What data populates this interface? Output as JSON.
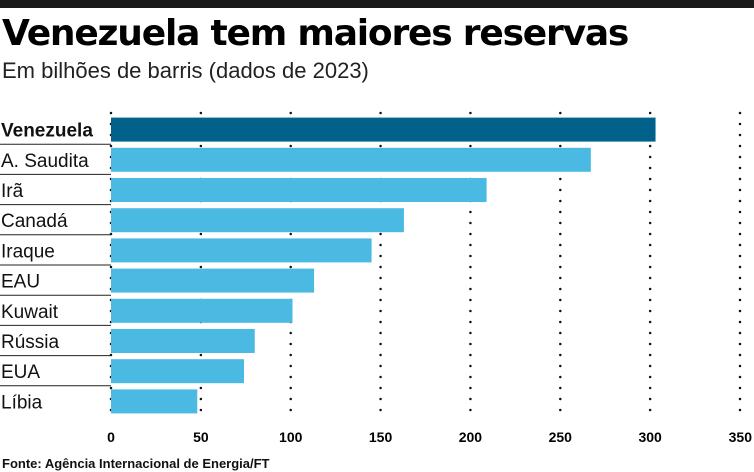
{
  "header": {
    "title": "Venezuela tem maiores reservas",
    "subtitle": "Em bilhões de barris (dados de 2023)"
  },
  "footer": {
    "source": "Fonte: Agência Internacional de Energia/FT"
  },
  "colors": {
    "highlight": "#00618a",
    "bar": "#4bbae3",
    "rule": "#222222"
  },
  "chart_data": {
    "type": "bar",
    "orientation": "horizontal",
    "title": "Venezuela tem maiores reservas",
    "subtitle": "Em bilhões de barris (dados de 2023)",
    "xlabel": "",
    "ylabel": "",
    "categories": [
      "Venezuela",
      "A. Saudita",
      "Irã",
      "Canadá",
      "Iraque",
      "EAU",
      "Kuwait",
      "Rússia",
      "EUA",
      "Líbia"
    ],
    "values": [
      303,
      267,
      209,
      163,
      145,
      113,
      101,
      80,
      74,
      48
    ],
    "highlight_category": "Venezuela",
    "xlim": [
      0,
      350
    ],
    "xticks": [
      0,
      50,
      100,
      150,
      200,
      250,
      300,
      350
    ],
    "grid": "vertical dotted",
    "legend": "none"
  }
}
